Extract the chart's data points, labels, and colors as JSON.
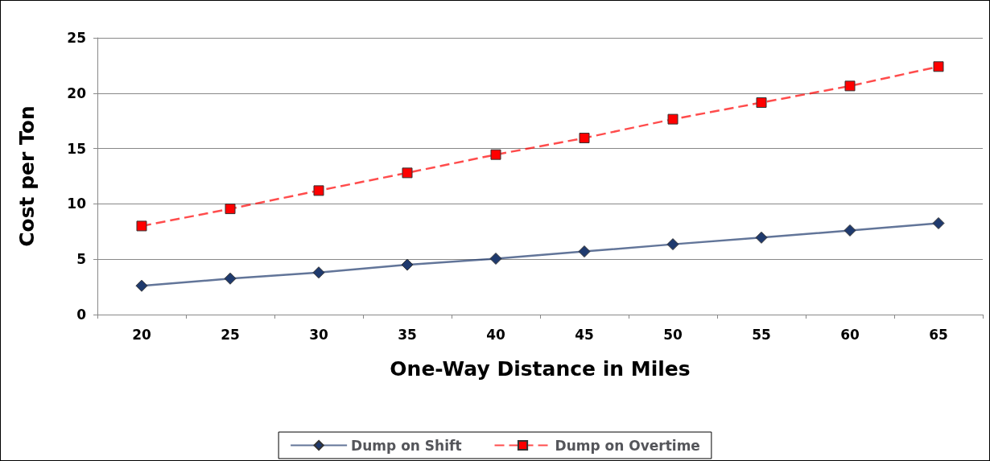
{
  "chart_data": {
    "type": "line",
    "xlabel": "One-Way Distance in Miles",
    "ylabel": "Cost per Ton",
    "categories": [
      "20",
      "25",
      "30",
      "35",
      "40",
      "45",
      "50",
      "55",
      "60",
      "65"
    ],
    "series": [
      {
        "name": "Dump on Shift",
        "color": "#1f3a6e",
        "marker": "diamond",
        "line_style": "solid",
        "values": [
          2.6,
          3.25,
          3.8,
          4.5,
          5.05,
          5.7,
          6.35,
          6.95,
          7.6,
          8.25
        ]
      },
      {
        "name": "Dump on Overtime",
        "color": "#ff0000",
        "marker": "square",
        "line_style": "dashed",
        "values": [
          8.0,
          9.55,
          11.2,
          12.8,
          14.45,
          15.95,
          17.65,
          19.15,
          20.65,
          22.4
        ]
      }
    ],
    "ylim": [
      0,
      25
    ],
    "yticks": [
      0,
      5,
      10,
      15,
      20,
      25
    ],
    "grid": "y",
    "legend": "bottom"
  }
}
